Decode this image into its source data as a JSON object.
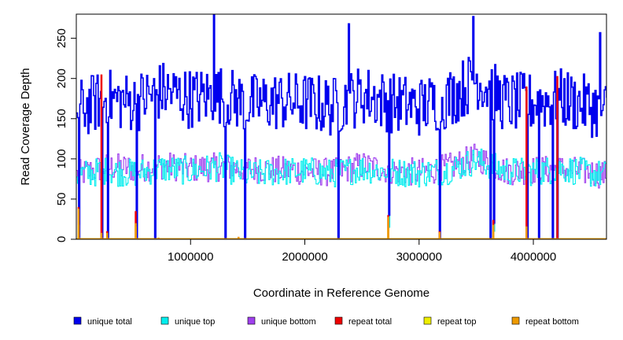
{
  "chart_data": {
    "type": "line",
    "title": "",
    "xlabel": "Coordinate in Reference Genome",
    "ylabel": "Read Coverage Depth",
    "xlim": [
      0,
      4640000
    ],
    "ylim": [
      0,
      280
    ],
    "x_ticks": [
      1000000,
      2000000,
      3000000,
      4000000
    ],
    "x_tick_labels": [
      "1000000",
      "2000000",
      "3000000",
      "4000000"
    ],
    "y_ticks": [
      0,
      50,
      100,
      150,
      200,
      250
    ],
    "y_tick_labels": [
      "0",
      "50",
      "100",
      "150",
      "200",
      "250"
    ],
    "grid": false,
    "legend_position": "bottom",
    "series": [
      {
        "name": "unique total",
        "color": "#0000ee",
        "sample_x": [
          0,
          250000,
          500000,
          750000,
          1000000,
          1250000,
          1500000,
          1750000,
          2000000,
          2250000,
          2500000,
          2750000,
          3000000,
          3250000,
          3500000,
          3750000,
          4000000,
          4250000,
          4500000,
          4640000
        ],
        "values": [
          160,
          175,
          170,
          185,
          175,
          180,
          168,
          172,
          170,
          165,
          180,
          170,
          165,
          175,
          200,
          170,
          170,
          175,
          165,
          160
        ],
        "peaks": [
          {
            "x": 1200000,
            "y": 280
          },
          {
            "x": 2380000,
            "y": 268
          },
          {
            "x": 3470000,
            "y": 277
          },
          {
            "x": 4580000,
            "y": 257
          }
        ],
        "dropouts": [
          {
            "x": 20000,
            "y": 0
          },
          {
            "x": 220000,
            "y": 0
          },
          {
            "x": 270000,
            "y": 0
          },
          {
            "x": 520000,
            "y": 0
          },
          {
            "x": 690000,
            "y": 0
          },
          {
            "x": 1300000,
            "y": 0
          },
          {
            "x": 1470000,
            "y": 0
          },
          {
            "x": 2290000,
            "y": 0
          },
          {
            "x": 2730000,
            "y": 30
          },
          {
            "x": 3180000,
            "y": 0
          },
          {
            "x": 3620000,
            "y": 0
          },
          {
            "x": 3650000,
            "y": 20
          },
          {
            "x": 3940000,
            "y": 0
          },
          {
            "x": 4040000,
            "y": 0
          },
          {
            "x": 4170000,
            "y": 0
          },
          {
            "x": 4210000,
            "y": 0
          }
        ]
      },
      {
        "name": "unique top",
        "color": "#00eeee",
        "sample_x": [
          0,
          250000,
          500000,
          750000,
          1000000,
          1250000,
          1500000,
          1750000,
          2000000,
          2250000,
          2500000,
          2750000,
          3000000,
          3250000,
          3500000,
          3750000,
          4000000,
          4250000,
          4500000,
          4640000
        ],
        "values": [
          80,
          85,
          82,
          88,
          85,
          90,
          80,
          84,
          85,
          82,
          88,
          84,
          82,
          86,
          98,
          85,
          84,
          88,
          82,
          80
        ]
      },
      {
        "name": "unique bottom",
        "color": "#a040ee",
        "sample_x": [
          0,
          250000,
          500000,
          750000,
          1000000,
          1250000,
          1500000,
          1750000,
          2000000,
          2250000,
          2500000,
          2750000,
          3000000,
          3250000,
          3500000,
          3750000,
          4000000,
          4250000,
          4500000,
          4640000
        ],
        "values": [
          80,
          90,
          88,
          92,
          88,
          90,
          88,
          86,
          85,
          83,
          92,
          86,
          83,
          89,
          102,
          85,
          86,
          87,
          83,
          80
        ]
      },
      {
        "name": "repeat total",
        "color": "#ee0000",
        "baseline": 0,
        "spikes": [
          {
            "x": 20000,
            "y": 40
          },
          {
            "x": 220000,
            "y": 205
          },
          {
            "x": 270000,
            "y": 10
          },
          {
            "x": 520000,
            "y": 35
          },
          {
            "x": 1420000,
            "y": 3
          },
          {
            "x": 2730000,
            "y": 30
          },
          {
            "x": 3180000,
            "y": 10
          },
          {
            "x": 3650000,
            "y": 24
          },
          {
            "x": 3940000,
            "y": 190
          },
          {
            "x": 4210000,
            "y": 203
          }
        ]
      },
      {
        "name": "repeat top",
        "color": "#eeee00",
        "baseline": 0,
        "spikes": [
          {
            "x": 20000,
            "y": 18
          },
          {
            "x": 520000,
            "y": 16
          },
          {
            "x": 2730000,
            "y": 14
          },
          {
            "x": 3650000,
            "y": 11
          }
        ]
      },
      {
        "name": "repeat bottom",
        "color": "#ee9a00",
        "baseline": 0,
        "spikes": [
          {
            "x": 20000,
            "y": 38
          },
          {
            "x": 220000,
            "y": 8
          },
          {
            "x": 270000,
            "y": 8
          },
          {
            "x": 520000,
            "y": 20
          },
          {
            "x": 720000,
            "y": 2
          },
          {
            "x": 1420000,
            "y": 3
          },
          {
            "x": 2730000,
            "y": 28
          },
          {
            "x": 3180000,
            "y": 9
          },
          {
            "x": 3650000,
            "y": 18
          },
          {
            "x": 3940000,
            "y": 16
          }
        ]
      }
    ]
  }
}
